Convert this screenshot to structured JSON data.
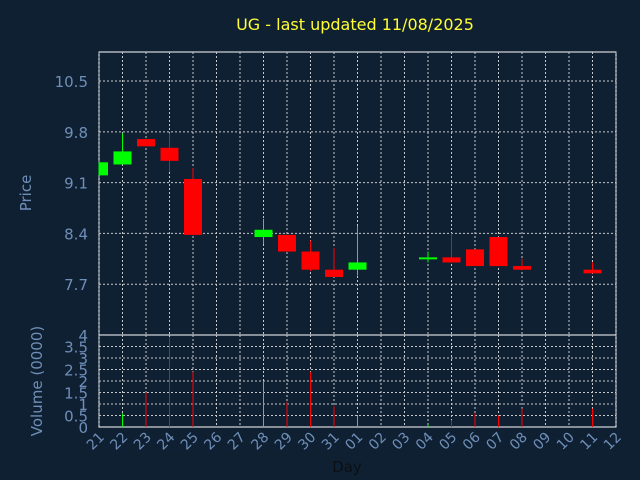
{
  "chart_data": {
    "type": "candlestick",
    "title": "UG - last updated 11/08/2025",
    "price_panel": {
      "ylabel": "Price",
      "ylim": [
        7.0,
        10.9
      ],
      "yticks": [
        "10.5",
        "9.8",
        "9.1",
        "8.4",
        "7.7"
      ],
      "ytick_values": [
        10.5,
        9.8,
        9.1,
        8.4,
        7.7
      ]
    },
    "volume_panel": {
      "ylabel": "Volume (0000)",
      "ylim": [
        0,
        4
      ],
      "yticks": [
        "4",
        "3.5",
        "3",
        "2.5",
        "2",
        "1.5",
        "1",
        "0.5",
        "0"
      ],
      "ytick_values": [
        4,
        3.5,
        3,
        2.5,
        2,
        1.5,
        1,
        0.5,
        0
      ]
    },
    "xlabel": "Day",
    "xticks": [
      "21",
      "22",
      "23",
      "24",
      "25",
      "26",
      "27",
      "28",
      "29",
      "30",
      "31",
      "01",
      "02",
      "03",
      "04",
      "05",
      "06",
      "07",
      "08",
      "09",
      "10",
      "11",
      "12"
    ],
    "grid": true,
    "up_color": "#00ff00",
    "down_color": "#ff0000",
    "candles": [
      {
        "day": "21",
        "open": 9.2,
        "close": 9.38,
        "high": 9.38,
        "low": 9.2,
        "volume": 0.0
      },
      {
        "day": "22",
        "open": 9.35,
        "close": 9.53,
        "high": 9.78,
        "low": 9.35,
        "volume": 0.6
      },
      {
        "day": "23",
        "open": 9.7,
        "close": 9.6,
        "high": 9.7,
        "low": 9.6,
        "volume": 1.5
      },
      {
        "day": "24",
        "open": 9.58,
        "close": 9.4,
        "high": 9.78,
        "low": 9.25,
        "volume": 3.9
      },
      {
        "day": "25",
        "open": 9.15,
        "close": 8.38,
        "high": 9.3,
        "low": 8.38,
        "volume": 2.4
      },
      {
        "day": "28",
        "open": 8.35,
        "close": 8.45,
        "high": 8.6,
        "low": 8.25,
        "volume": 2.0
      },
      {
        "day": "29",
        "open": 8.38,
        "close": 8.15,
        "high": 8.38,
        "low": 8.15,
        "volume": 1.1
      },
      {
        "day": "30",
        "open": 8.15,
        "close": 7.9,
        "high": 8.3,
        "low": 7.88,
        "volume": 2.4
      },
      {
        "day": "31",
        "open": 7.9,
        "close": 7.8,
        "high": 8.2,
        "low": 7.8,
        "volume": 0.9
      },
      {
        "day": "01",
        "open": 7.9,
        "close": 8.0,
        "high": 8.5,
        "low": 7.82,
        "volume": 0.5
      },
      {
        "day": "04",
        "open": 8.05,
        "close": 8.07,
        "high": 8.15,
        "low": 8.0,
        "volume": 0.1
      },
      {
        "day": "05",
        "open": 8.07,
        "close": 8.0,
        "high": 8.4,
        "low": 8.0,
        "volume": 0.3
      },
      {
        "day": "06",
        "open": 8.18,
        "close": 7.95,
        "high": 8.18,
        "low": 7.95,
        "volume": 0.6
      },
      {
        "day": "07",
        "open": 8.35,
        "close": 7.95,
        "high": 8.35,
        "low": 7.95,
        "volume": 0.5
      },
      {
        "day": "08",
        "open": 7.95,
        "close": 7.9,
        "high": 8.05,
        "low": 7.9,
        "volume": 0.8
      },
      {
        "day": "11",
        "open": 7.9,
        "close": 7.85,
        "high": 8.0,
        "low": 7.85,
        "volume": 0.8
      }
    ]
  }
}
